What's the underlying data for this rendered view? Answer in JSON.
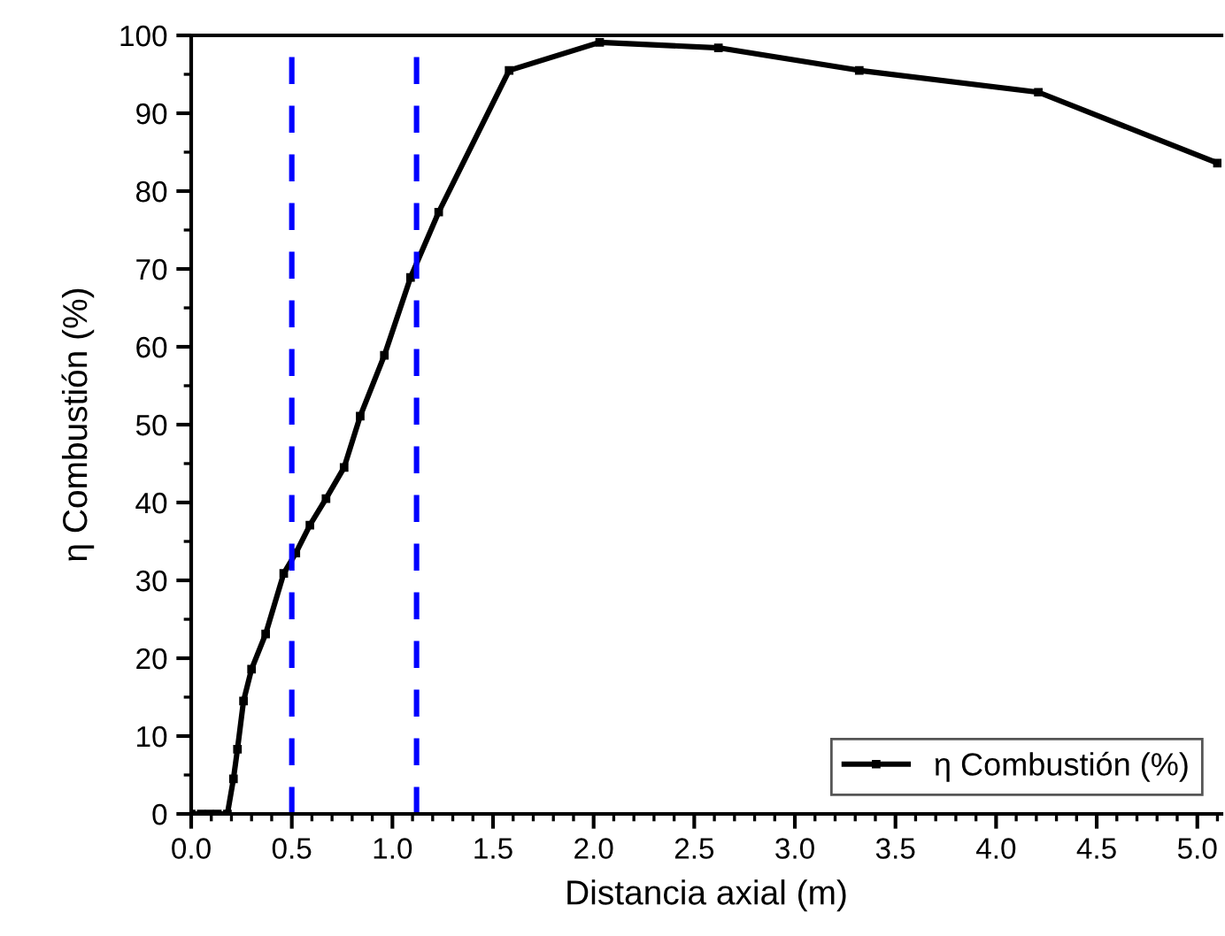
{
  "chart_data": {
    "type": "line",
    "xlabel": "Distancia axial (m)",
    "ylabel": "η Combustión (%)",
    "xlim": [
      0,
      5.12
    ],
    "xticks": [
      {
        "value": 0,
        "label": "0.0"
      },
      {
        "value": 0.5,
        "label": "0.5"
      },
      {
        "value": 1,
        "label": "1.0"
      },
      {
        "value": 1.5,
        "label": "1.5"
      },
      {
        "value": 2,
        "label": "2.0"
      },
      {
        "value": 2.5,
        "label": "2.5"
      },
      {
        "value": 3,
        "label": "3.0"
      },
      {
        "value": 3.5,
        "label": "3.5"
      },
      {
        "value": 4,
        "label": "4.0"
      },
      {
        "value": 4.5,
        "label": "4.5"
      },
      {
        "value": 5,
        "label": "5.0"
      }
    ],
    "ylim": [
      0,
      100
    ],
    "yticks": [
      0,
      10,
      20,
      30,
      40,
      50,
      60,
      70,
      80,
      90,
      100
    ],
    "series": [
      {
        "name": "η Combustión (%)",
        "color": "#000000",
        "marker": "square",
        "line_style": "solid",
        "x": [
          0,
          0.05,
          0.09,
          0.13,
          0.18,
          0.21,
          0.23,
          0.26,
          0.3,
          0.37,
          0.46,
          0.52,
          0.59,
          0.67,
          0.76,
          0.84,
          0.96,
          1.09,
          1.23,
          1.58,
          2.03,
          2.62,
          3.32,
          4.21,
          5.1
        ],
        "values": [
          0,
          0,
          0,
          0,
          0,
          4.5,
          8.3,
          14.5,
          18.6,
          23.1,
          30.9,
          33.5,
          37.1,
          40.5,
          44.5,
          51.1,
          58.9,
          68.9,
          77.3,
          95.5,
          99.1,
          98.4,
          95.5,
          92.7,
          83.6
        ]
      }
    ],
    "ref_lines": [
      {
        "axis": "x",
        "value": 0.5,
        "color": "#0000ff",
        "line_style": "dashed"
      },
      {
        "axis": "x",
        "value": 1.12,
        "color": "#0000ff",
        "line_style": "dashed"
      }
    ],
    "grid": false,
    "legend": "bottom right"
  }
}
